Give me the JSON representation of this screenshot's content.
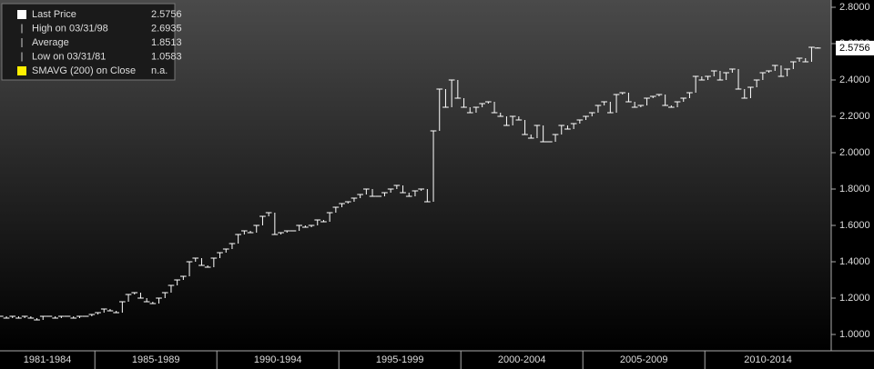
{
  "chart_data": {
    "type": "step",
    "legend": {
      "items": [
        {
          "label": "Last Price",
          "value": 2.5756
        },
        {
          "label": "High on 03/31/98",
          "value": 2.6935
        },
        {
          "label": "Average",
          "value": 1.8513
        },
        {
          "label": "Low on 03/31/81",
          "value": 1.0583
        },
        {
          "label": "SMAVG (200) on Close",
          "value": "n.a."
        }
      ]
    },
    "last_value_label": "2.5756",
    "color": "#ffffff",
    "groups": [
      {
        "label": "1981-1984",
        "values": [
          1.1,
          1.09,
          1.1,
          1.09,
          1.1,
          1.09,
          1.08,
          1.1,
          1.1,
          1.09,
          1.1,
          1.1,
          1.09,
          1.1,
          1.1,
          1.11
        ]
      },
      {
        "label": "1985-1989",
        "values": [
          1.12,
          1.14,
          1.13,
          1.12,
          1.18,
          1.22,
          1.23,
          1.2,
          1.18,
          1.17,
          1.2,
          1.23,
          1.27,
          1.3,
          1.32,
          1.4,
          1.42,
          1.38,
          1.37,
          1.42
        ]
      },
      {
        "label": "1990-1994",
        "values": [
          1.45,
          1.47,
          1.5,
          1.55,
          1.57,
          1.56,
          1.6,
          1.65,
          1.67,
          1.55,
          1.56,
          1.57,
          1.57,
          1.6,
          1.59,
          1.6,
          1.63,
          1.62,
          1.67,
          1.7
        ]
      },
      {
        "label": "1995-1999",
        "values": [
          1.72,
          1.73,
          1.75,
          1.77,
          1.8,
          1.76,
          1.76,
          1.78,
          1.8,
          1.82,
          1.78,
          1.76,
          1.79,
          1.8,
          1.73,
          2.12,
          2.35,
          2.25,
          2.4,
          2.3
        ]
      },
      {
        "label": "2000-2004",
        "values": [
          2.25,
          2.22,
          2.25,
          2.27,
          2.28,
          2.22,
          2.2,
          2.15,
          2.2,
          2.18,
          2.1,
          2.08,
          2.15,
          2.06,
          2.06,
          2.1,
          2.15,
          2.13,
          2.16,
          2.18
        ]
      },
      {
        "label": "2005-2009",
        "values": [
          2.2,
          2.22,
          2.26,
          2.28,
          2.22,
          2.32,
          2.33,
          2.28,
          2.25,
          2.26,
          2.3,
          2.31,
          2.32,
          2.26,
          2.25,
          2.28,
          2.3,
          2.33,
          2.42,
          2.4
        ]
      },
      {
        "label": "2010-2014",
        "values": [
          2.42,
          2.45,
          2.4,
          2.44,
          2.46,
          2.35,
          2.3,
          2.36,
          2.4,
          2.44,
          2.45,
          2.48,
          2.42,
          2.46,
          2.5,
          2.52,
          2.5,
          2.58,
          2.5756
        ]
      }
    ],
    "ylim": [
      0.95,
      2.85
    ],
    "yticks": [
      {
        "value": 1.0,
        "label": "1.0000"
      },
      {
        "value": 1.2,
        "label": "1.2000"
      },
      {
        "value": 1.4,
        "label": "1.4000"
      },
      {
        "value": 1.6,
        "label": "1.6000"
      },
      {
        "value": 1.8,
        "label": "1.8000"
      },
      {
        "value": 2.0,
        "label": "2.0000"
      },
      {
        "value": 2.2,
        "label": "2.2000"
      },
      {
        "value": 2.4,
        "label": "2.4000"
      },
      {
        "value": 2.6,
        "label": "2.6000"
      },
      {
        "value": 2.8,
        "label": "2.8000"
      }
    ]
  }
}
